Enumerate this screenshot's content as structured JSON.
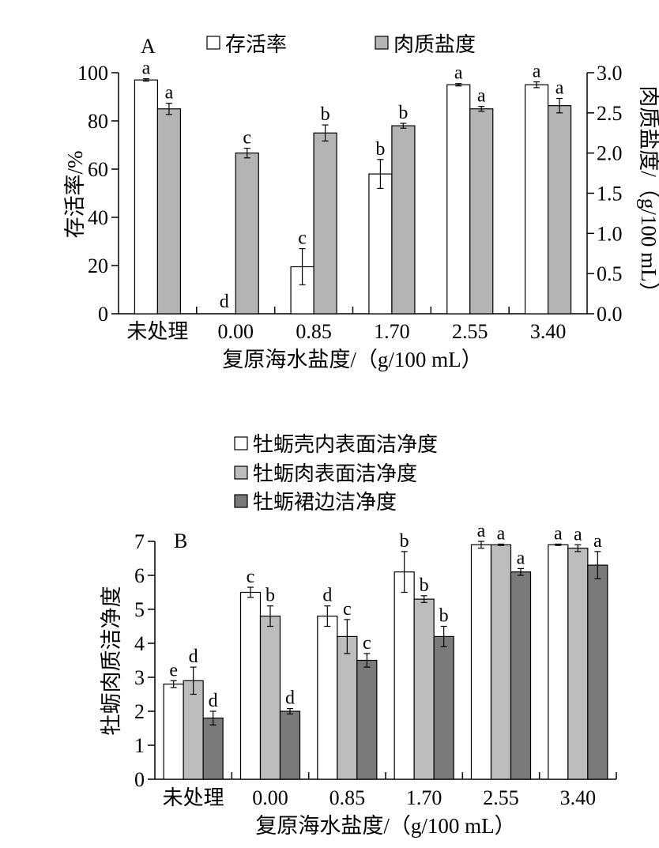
{
  "chart_data": [
    {
      "type": "bar",
      "panel_label": "A",
      "categories": [
        "未处理",
        "0.00",
        "0.85",
        "1.70",
        "2.55",
        "3.40"
      ],
      "xlabel": "复原海水盐度/（g/100 mL）",
      "ylabel": "存活率/%",
      "y2label": "肉质盐度/（g/100 mL）",
      "ylim": [
        0,
        100
      ],
      "y2lim": [
        0,
        3.0
      ],
      "yticks": [
        "0",
        "20",
        "40",
        "60",
        "80",
        "100"
      ],
      "y2ticks": [
        "0.0",
        "0.5",
        "1.0",
        "1.5",
        "2.0",
        "2.5",
        "3.0"
      ],
      "legend_position": "top",
      "series": [
        {
          "name": "存活率",
          "axis": "left",
          "color": "#ffffff",
          "values": [
            97,
            0,
            19.5,
            58,
            95,
            95
          ],
          "errors": [
            0.5,
            0,
            7.5,
            6,
            0.5,
            1.2
          ],
          "letters": [
            "a",
            "d",
            "c",
            "b",
            "a",
            "a"
          ]
        },
        {
          "name": "肉质盐度",
          "axis": "right",
          "color": "#b4b4b4",
          "values": [
            2.55,
            2.0,
            2.25,
            2.34,
            2.55,
            2.59
          ],
          "errors": [
            0.07,
            0.06,
            0.1,
            0.03,
            0.03,
            0.09
          ],
          "letters": [
            "a",
            "c",
            "b",
            "b",
            "a",
            "a"
          ]
        }
      ]
    },
    {
      "type": "bar",
      "panel_label": "B",
      "categories": [
        "未处理",
        "0.00",
        "0.85",
        "1.70",
        "2.55",
        "3.40"
      ],
      "xlabel": "复原海水盐度/（g/100 mL）",
      "ylabel": "牡蛎肉质洁净度",
      "ylim": [
        0,
        7
      ],
      "yticks": [
        "0",
        "1",
        "2",
        "3",
        "4",
        "5",
        "6",
        "7"
      ],
      "legend_position": "top",
      "series": [
        {
          "name": "牡蛎壳内表面洁净度",
          "color": "#ffffff",
          "values": [
            2.8,
            5.5,
            4.8,
            6.1,
            6.9,
            6.9
          ],
          "errors": [
            0.1,
            0.15,
            0.3,
            0.6,
            0.1,
            0.02
          ],
          "letters": [
            "e",
            "c",
            "d",
            "b",
            "a",
            "a"
          ]
        },
        {
          "name": "牡蛎肉表面洁净度",
          "color": "#bdbdbd",
          "values": [
            2.9,
            4.8,
            4.2,
            5.3,
            6.9,
            6.8
          ],
          "errors": [
            0.4,
            0.3,
            0.5,
            0.1,
            0.02,
            0.1
          ],
          "letters": [
            "d",
            "b",
            "c",
            "b",
            "a",
            "a"
          ]
        },
        {
          "name": "牡蛎裙边洁净度",
          "color": "#7a7a7a",
          "values": [
            1.8,
            2.0,
            3.5,
            4.2,
            6.1,
            6.3
          ],
          "errors": [
            0.2,
            0.08,
            0.2,
            0.3,
            0.1,
            0.4
          ],
          "letters": [
            "d",
            "d",
            "c",
            "b",
            "a",
            "a"
          ]
        }
      ]
    }
  ]
}
